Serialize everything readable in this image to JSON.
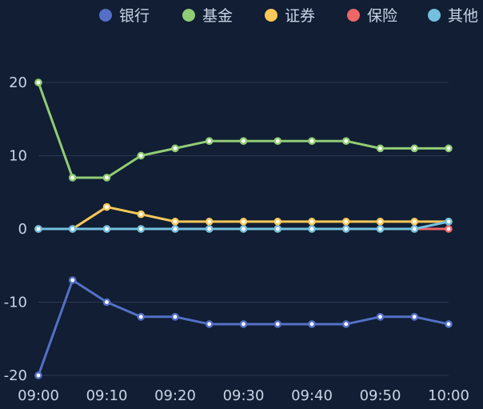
{
  "chart_data": {
    "type": "line",
    "title": "",
    "xlabel": "",
    "ylabel": "",
    "legend_position": "top",
    "grid": true,
    "ylim": [
      -20,
      20
    ],
    "y_ticks": [
      20,
      10,
      0,
      -10,
      -20
    ],
    "x": [
      "09:00",
      "09:05",
      "09:10",
      "09:15",
      "09:20",
      "09:25",
      "09:30",
      "09:35",
      "09:40",
      "09:45",
      "09:50",
      "09:55",
      "10:00"
    ],
    "x_tick_labels": [
      "09:00",
      "09:10",
      "09:20",
      "09:30",
      "09:40",
      "09:50",
      "10:00"
    ],
    "series": [
      {
        "name": "银行",
        "color": "#5470c6",
        "values": [
          -20,
          -7,
          -10,
          -12,
          -12,
          -13,
          -13,
          -13,
          -13,
          -13,
          -12,
          -12,
          -13
        ]
      },
      {
        "name": "基金",
        "color": "#91cc75",
        "values": [
          20,
          7,
          7,
          10,
          11,
          12,
          12,
          12,
          12,
          12,
          11,
          11,
          11
        ]
      },
      {
        "name": "证券",
        "color": "#fac858",
        "values": [
          0,
          0,
          3,
          2,
          1,
          1,
          1,
          1,
          1,
          1,
          1,
          1,
          1
        ]
      },
      {
        "name": "保险",
        "color": "#ee6666",
        "values": [
          0,
          0,
          0,
          0,
          0,
          0,
          0,
          0,
          0,
          0,
          0,
          0,
          0
        ]
      },
      {
        "name": "其他",
        "color": "#73c0de",
        "values": [
          0,
          0,
          0,
          0,
          0,
          0,
          0,
          0,
          0,
          0,
          0,
          0,
          1
        ]
      }
    ]
  },
  "colors": {
    "background": "#111e33",
    "grid_line": "#2b3a52",
    "axis_text": "#c8d4e6",
    "legend_text": "#c8d4e6"
  }
}
